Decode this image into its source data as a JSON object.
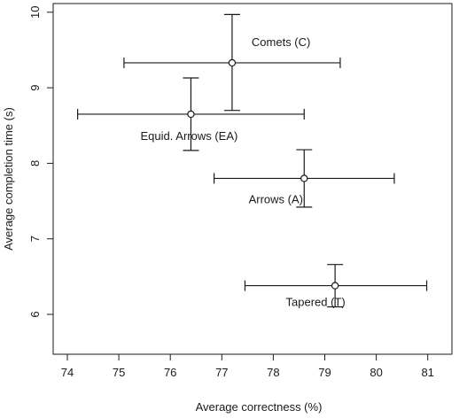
{
  "chart_data": {
    "type": "scatter",
    "title": "",
    "xlabel": "Average correctness (%)",
    "ylabel": "Average completion time (s)",
    "xlim": [
      74,
      81
    ],
    "ylim": [
      6,
      10
    ],
    "xticks": [
      74,
      75,
      76,
      77,
      78,
      79,
      80,
      81
    ],
    "yticks": [
      6,
      7,
      8,
      9,
      10
    ],
    "grid": false,
    "legend": "none",
    "colors": {
      "marks": "#1a1a1a",
      "frame": "#1a1a1a",
      "background": "#ffffff"
    },
    "points": [
      {
        "label": "Comets (C)",
        "x": 77.2,
        "y": 9.33,
        "xerr": [
          75.1,
          79.3
        ],
        "yerr": [
          8.7,
          9.97
        ]
      },
      {
        "label": "Equid. Arrows (EA)",
        "x": 76.4,
        "y": 8.65,
        "xerr": [
          74.2,
          78.6
        ],
        "yerr": [
          8.17,
          9.13
        ]
      },
      {
        "label": "Arrows (A)",
        "x": 78.6,
        "y": 7.8,
        "xerr": [
          76.85,
          80.35
        ],
        "yerr": [
          7.42,
          8.18
        ]
      },
      {
        "label": "Tapered (T)",
        "x": 79.2,
        "y": 6.38,
        "xerr": [
          77.45,
          80.98
        ],
        "yerr": [
          6.1,
          6.66
        ]
      }
    ]
  }
}
